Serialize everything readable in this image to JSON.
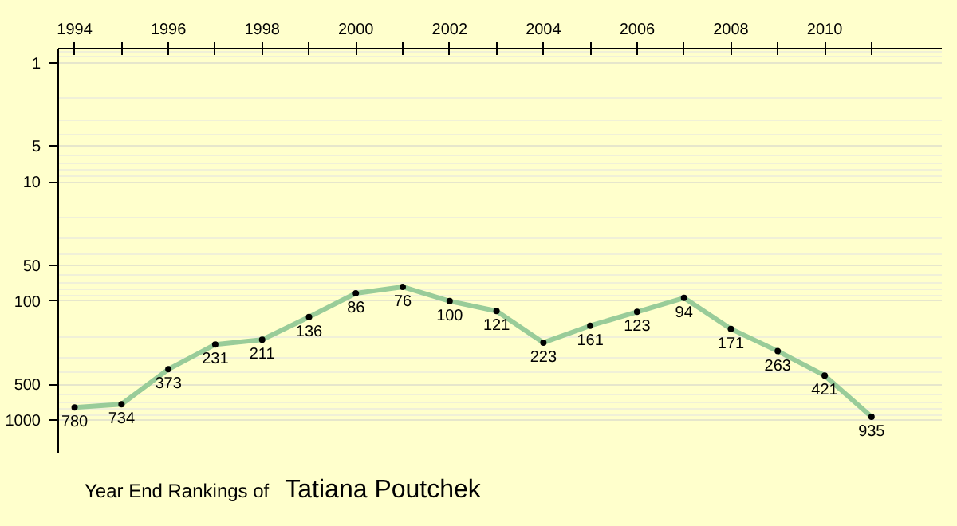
{
  "chart_data": {
    "type": "line",
    "title": "Year End Rankings of",
    "subtitle": "Tatiana Poutchek",
    "x": [
      1994,
      1995,
      1996,
      1997,
      1998,
      1999,
      2000,
      2001,
      2002,
      2003,
      2004,
      2005,
      2006,
      2007,
      2008,
      2009,
      2010,
      2011
    ],
    "series": [
      {
        "color": "#99cc99",
        "values": [
          780,
          734,
          373,
          231,
          211,
          136,
          86,
          76,
          100,
          121,
          223,
          161,
          123,
          94,
          171,
          263,
          421,
          935
        ]
      }
    ],
    "xlim": [
      1993.65,
      2012.5
    ],
    "xticks": [
      1994,
      {
        "value": 1995,
        "label": null
      },
      1996,
      {
        "value": 1997,
        "label": null
      },
      1998,
      {
        "value": 1999,
        "label": null
      },
      2000,
      {
        "value": 2001,
        "label": null
      },
      2002,
      {
        "value": 2003,
        "label": null
      },
      2004,
      {
        "value": 2005,
        "label": null
      },
      2006,
      {
        "value": 2007,
        "label": null
      },
      2008,
      {
        "value": 2009,
        "label": null
      },
      2010,
      {
        "value": 2011,
        "label": null
      }
    ],
    "ylim": [
      1900,
      0.76
    ],
    "yticks": [
      1,
      5,
      10,
      50,
      100,
      500,
      1000
    ],
    "log": "y",
    "grid": "y",
    "marker": "circle",
    "line_style": "solid",
    "data_labels": true
  }
}
